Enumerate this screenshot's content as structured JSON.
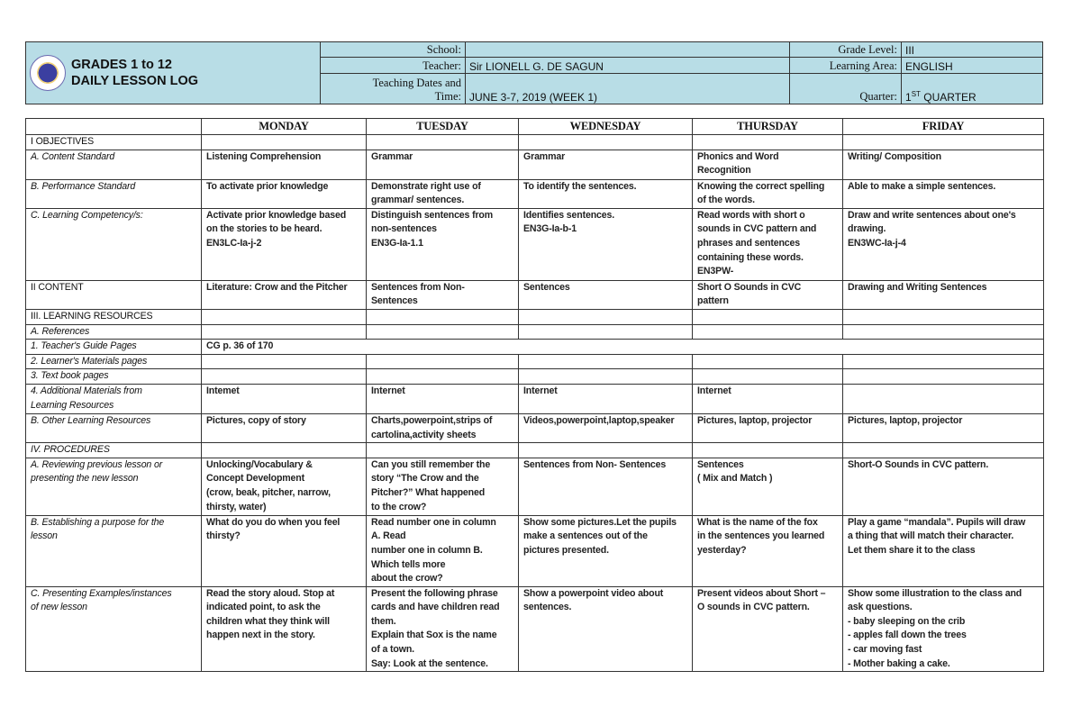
{
  "header": {
    "title_line1": "GRADES 1 to 12",
    "title_line2": "DAILY LESSON LOG",
    "school_label": "School:",
    "school_value": "",
    "grade_label": "Grade Level:",
    "grade_value": "III",
    "teacher_label": "Teacher:",
    "teacher_value": "Sir LIONELL G. DE  SAGUN",
    "area_label": "Learning Area:",
    "area_value": "ENGLISH",
    "dates_label_1": "Teaching Dates and",
    "dates_label_2": "Time:",
    "dates_value": "JUNE 3-7, 2019  (WEEK 1)",
    "quarter_label": "Quarter:",
    "quarter_num": "1",
    "quarter_sup": "ST",
    "quarter_text": " QUARTER",
    "header_bg": "#b8dde6"
  },
  "table": {
    "days": [
      "MONDAY",
      "TUESDAY",
      "WEDNESDAY",
      "THURSDAY",
      "FRIDAY"
    ],
    "rows": [
      {
        "label": "I OBJECTIVES",
        "style": "",
        "h": 16,
        "cells": [
          "",
          "",
          "",
          "",
          ""
        ]
      },
      {
        "label": "A.     Content Standard",
        "style": "it ind",
        "h": 33,
        "cells": [
          "Listening Comprehension",
          "Grammar",
          "Grammar",
          "Phonics and Word\nRecognition",
          "Writing/ Composition"
        ]
      },
      {
        "label": "B.     Performance Standard",
        "style": "it ind",
        "h": 31,
        "cells": [
          "To activate prior knowledge",
          "Demonstrate right use of\ngrammar/ sentences.",
          "To identify the sentences.",
          "Knowing the correct spelling\nof the words.",
          "Able to make a simple sentences."
        ]
      },
      {
        "label": "C.     Learning Competency/s:",
        "style": "it ind",
        "h": 80,
        "cells": [
          "Activate prior knowledge based\non the stories to be heard.\nEN3LC-Ia-j-2",
          "Distinguish sentences from\nnon-sentences\nEN3G-Ia-1.1",
          "Identifies sentences.\nEN3G-Ia-b-1",
          "Read words with short o\nsounds in CVC pattern and\nphrases and sentences\ncontaining these words.\nEN3PW-",
          "Draw and write sentences about one's\ndrawing.\nEN3WC-Ia-j-4"
        ]
      },
      {
        "label": "II CONTENT",
        "style": "",
        "h": 32,
        "cells": [
          "Literature: Crow and the Pitcher",
          "Sentences from Non-\nSentences",
          "Sentences",
          "Short O Sounds in CVC\npattern",
          "Drawing and Writing Sentences"
        ]
      },
      {
        "label": "III. LEARNING RESOURCES",
        "style": "bd",
        "h": 16,
        "cells": [
          "",
          "",
          "",
          "",
          ""
        ]
      },
      {
        "label": "A. References",
        "style": "it bd",
        "h": 16,
        "cells": [
          "",
          "",
          "",
          "",
          ""
        ]
      },
      {
        "label": "1. Teacher's Guide Pages",
        "style": "it",
        "h": 16,
        "span": true,
        "cells": [
          "CG p. 36 of 170"
        ]
      },
      {
        "label": "2. Learner's Materials pages",
        "style": "it",
        "h": 16,
        "cells": [
          "",
          "",
          "",
          "",
          ""
        ]
      },
      {
        "label": "3. Text book pages",
        "style": "it",
        "h": 16,
        "cells": [
          "",
          "",
          "",
          "",
          ""
        ]
      },
      {
        "label": "4. Additional Materials from\nLearning Resources",
        "style": "it",
        "h": 33,
        "cells": [
          "Intemet",
          "Internet",
          "Internet",
          "Internet",
          ""
        ]
      },
      {
        "label": "B. Other Learning Resources",
        "style": "it bd",
        "h": 32,
        "cells": [
          "Pictures, copy of story",
          "Charts,powerpoint,strips of\ncartolina,activity sheets",
          "Videos,powerpoint,laptop,speaker",
          "Pictures, laptop, projector",
          "Pictures, laptop, projector"
        ]
      },
      {
        "label": "IV. PROCEDURES",
        "style": "it bd",
        "h": 16,
        "cells": [
          "",
          "",
          "",
          "",
          ""
        ]
      },
      {
        "label": "A. Reviewing previous lesson or\npresenting the new lesson",
        "style": "it",
        "h": 64,
        "cells": [
          "Unlocking/Vocabulary &\nConcept Development\n(crow, beak, pitcher, narrow,\nthirsty, water)",
          "Can you still remember the\nstory “The Crow and the\nPitcher?” What happened\nto the crow?",
          "Sentences from Non- Sentences",
          "Sentences\n( Mix and Match )",
          "Short-O Sounds in CVC pattern."
        ]
      },
      {
        "label": "B. Establishing a purpose for the\nlesson",
        "style": "it",
        "h": 78,
        "cells": [
          "What do you do when you feel\nthirsty?",
          "Read number one in column\nA. Read\nnumber one in column B.\nWhich tells more\nabout the crow?",
          "Show some pictures.Let the pupils\nmake a sentences out of the\npictures presented.",
          "What is the name of the fox\nin the sentences you learned\nyesterday?",
          "Play a game “mandala”. Pupils will draw\na thing that will match their character.\nLet them share it to the class"
        ]
      },
      {
        "label": "C. Presenting Examples/instances\nof new lesson",
        "style": "it",
        "h": 94,
        "cells": [
          "Read the story aloud. Stop at\nindicated point, to ask the\nchildren what they think will\nhappen next in the story.",
          "Present the following phrase\ncards and have children read\nthem.\nExplain that Sox is the name\nof a town.\nSay: Look at the sentence.",
          "Show a powerpoint video about\nsentences.",
          "Present videos about Short –\nO sounds in CVC pattern.",
          "Show some illustration to the class and\nask questions.\n-  baby sleeping on the crib\n- apples fall down the trees\n- car moving fast\n- Mother baking a cake."
        ]
      }
    ]
  }
}
